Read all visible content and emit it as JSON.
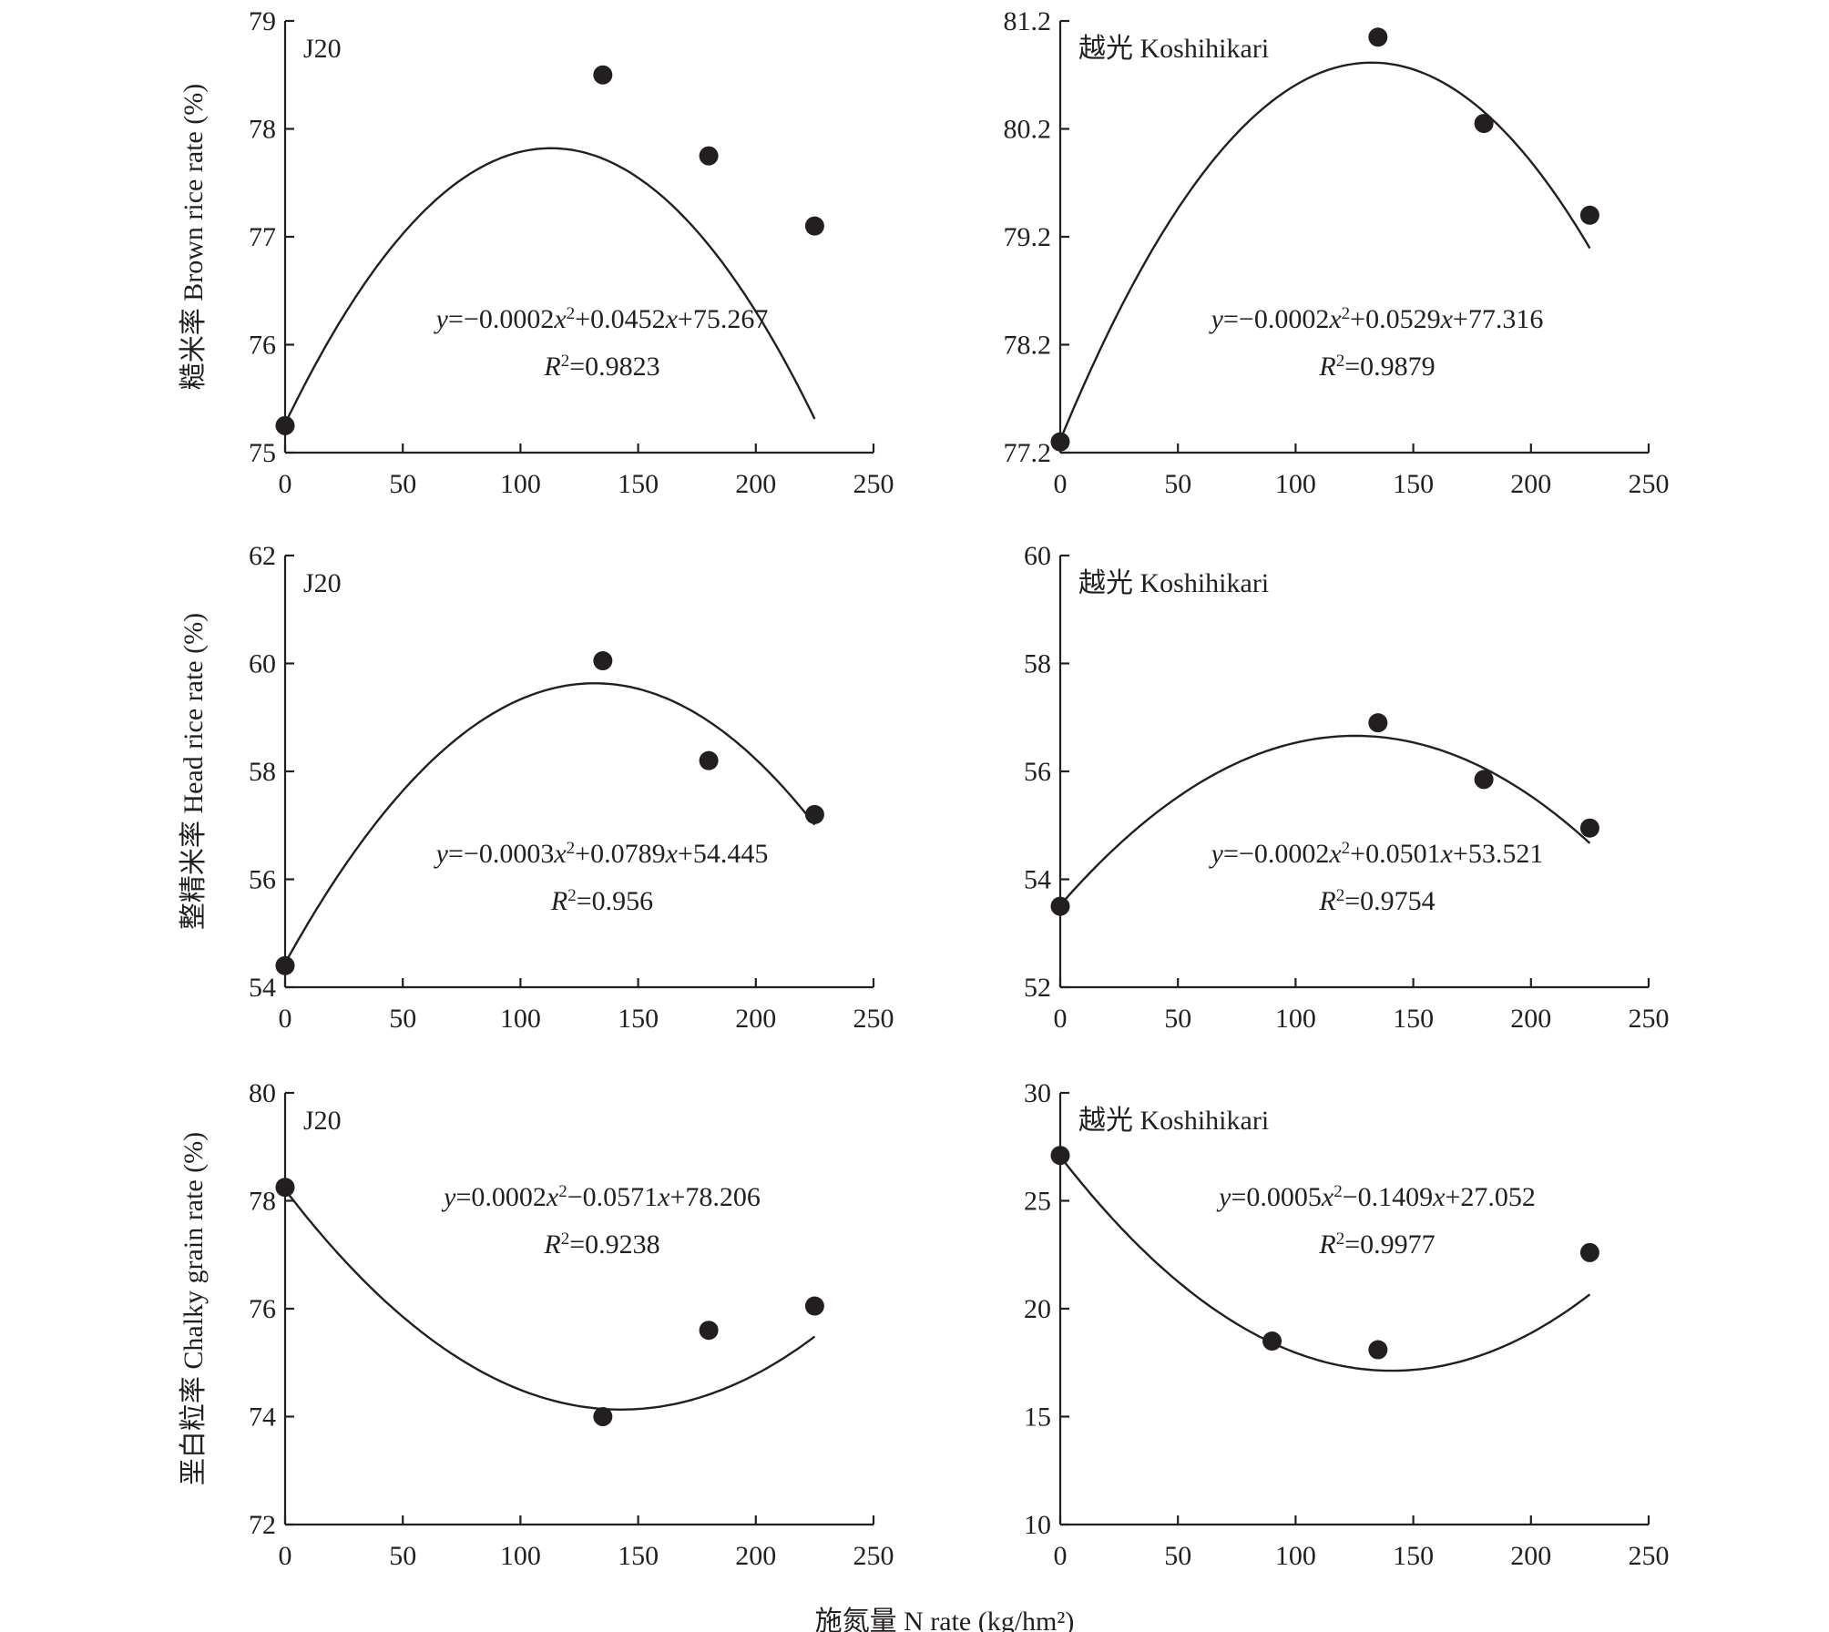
{
  "figure": {
    "xlabel": "施氮量 N rate (kg/hm²)",
    "row_ylabels": [
      "糙米率 Brown rice rate (%)",
      "整精米率 Head rice rate (%)",
      "垩白粒率 Chalky grain rate (%)"
    ]
  },
  "chart_data": [
    {
      "type": "scatter",
      "panel_label": "J20",
      "xlim": [
        0,
        250
      ],
      "xticks": [
        0,
        50,
        100,
        150,
        200,
        250
      ],
      "ylim": [
        75,
        79
      ],
      "yticks": [
        "75",
        "76",
        "77",
        "78",
        "79"
      ],
      "x": [
        0,
        135,
        180,
        225
      ],
      "y": [
        75.25,
        78.5,
        77.75,
        77.1
      ],
      "fit": {
        "a": -0.0002,
        "b": 0.0452,
        "c": 75.267
      },
      "equation": {
        "y": "y",
        "eq": "=−0.0002",
        "x1": "x",
        "sup": "2",
        "mid": "+0.0452",
        "x2": "x",
        "tail": "+75.267"
      },
      "r2": {
        "r": "R",
        "sup": "2",
        "val": "=0.9823"
      }
    },
    {
      "type": "scatter",
      "panel_label": "越光 Koshihikari",
      "xlim": [
        0,
        250
      ],
      "xticks": [
        0,
        50,
        100,
        150,
        200,
        250
      ],
      "ylim": [
        77.2,
        81.2
      ],
      "yticks": [
        "77.2",
        "78.2",
        "79.2",
        "80.2",
        "81.2"
      ],
      "x": [
        0,
        135,
        180,
        225
      ],
      "y": [
        77.3,
        81.05,
        80.25,
        79.4
      ],
      "fit": {
        "a": -0.0002,
        "b": 0.0529,
        "c": 77.316
      },
      "equation": {
        "y": "y",
        "eq": "=−0.0002",
        "x1": "x",
        "sup": "2",
        "mid": "+0.0529",
        "x2": "x",
        "tail": "+77.316"
      },
      "r2": {
        "r": "R",
        "sup": "2",
        "val": "=0.9879"
      }
    },
    {
      "type": "scatter",
      "panel_label": "J20",
      "xlim": [
        0,
        250
      ],
      "xticks": [
        0,
        50,
        100,
        150,
        200,
        250
      ],
      "ylim": [
        54,
        62
      ],
      "yticks": [
        "54",
        "56",
        "58",
        "60",
        "62"
      ],
      "x": [
        0,
        135,
        180,
        225
      ],
      "y": [
        54.4,
        60.05,
        58.2,
        57.2
      ],
      "fit": {
        "a": -0.0003,
        "b": 0.0789,
        "c": 54.445
      },
      "equation": {
        "y": "y",
        "eq": "=−0.0003",
        "x1": "x",
        "sup": "2",
        "mid": "+0.0789",
        "x2": "x",
        "tail": "+54.445"
      },
      "r2": {
        "r": "R",
        "sup": "2",
        "val": "=0.956"
      }
    },
    {
      "type": "scatter",
      "panel_label": "越光 Koshihikari",
      "xlim": [
        0,
        250
      ],
      "xticks": [
        0,
        50,
        100,
        150,
        200,
        250
      ],
      "ylim": [
        52,
        60
      ],
      "yticks": [
        "52",
        "54",
        "56",
        "58",
        "60"
      ],
      "x": [
        0,
        135,
        180,
        225
      ],
      "y": [
        53.5,
        56.9,
        55.85,
        54.95
      ],
      "fit": {
        "a": -0.0002,
        "b": 0.0501,
        "c": 53.521
      },
      "equation": {
        "y": "y",
        "eq": "=−0.0002",
        "x1": "x",
        "sup": "2",
        "mid": "+0.0501",
        "x2": "x",
        "tail": "+53.521"
      },
      "r2": {
        "r": "R",
        "sup": "2",
        "val": "=0.9754"
      }
    },
    {
      "type": "scatter",
      "panel_label": "J20",
      "xlim": [
        0,
        250
      ],
      "xticks": [
        0,
        50,
        100,
        150,
        200,
        250
      ],
      "ylim": [
        72,
        80
      ],
      "yticks": [
        "72",
        "74",
        "76",
        "78",
        "80"
      ],
      "x": [
        0,
        135,
        180,
        225
      ],
      "y": [
        78.25,
        74.0,
        75.6,
        76.05
      ],
      "fit": {
        "a": 0.0002,
        "b": -0.0571,
        "c": 78.206
      },
      "equation": {
        "y": "y",
        "eq": "=0.0002",
        "x1": "x",
        "sup": "2",
        "mid": "−0.0571",
        "x2": "x",
        "tail": "+78.206"
      },
      "r2": {
        "r": "R",
        "sup": "2",
        "val": "=0.9238"
      }
    },
    {
      "type": "scatter",
      "panel_label": "越光 Koshihikari",
      "xlim": [
        0,
        250
      ],
      "xticks": [
        0,
        50,
        100,
        150,
        200,
        250
      ],
      "ylim": [
        10,
        30
      ],
      "yticks": [
        "10",
        "15",
        "20",
        "25",
        "30"
      ],
      "x": [
        0,
        90,
        135,
        225
      ],
      "y": [
        27.1,
        18.5,
        18.1,
        22.6
      ],
      "fit": {
        "a": 0.0005,
        "b": -0.1409,
        "c": 27.052
      },
      "equation": {
        "y": "y",
        "eq": "=0.0005",
        "x1": "x",
        "sup": "2",
        "mid": "−0.1409",
        "x2": "x",
        "tail": "+27.052"
      },
      "r2": {
        "r": "R",
        "sup": "2",
        "val": "=0.9977"
      }
    }
  ]
}
